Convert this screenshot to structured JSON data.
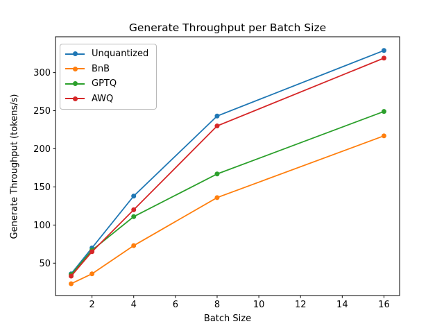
{
  "chart_data": {
    "type": "line",
    "title": "Generate Throughput per Batch Size",
    "xlabel": "Batch Size",
    "ylabel": "Generate Throughput (tokens/s)",
    "x": [
      1,
      2,
      4,
      8,
      16
    ],
    "series": [
      {
        "name": "Unquantized",
        "color": "#1f77b4",
        "values": [
          36,
          70,
          138,
          243,
          329
        ]
      },
      {
        "name": "BnB",
        "color": "#ff7f0e",
        "values": [
          23,
          36,
          73,
          136,
          217
        ]
      },
      {
        "name": "GPTQ",
        "color": "#2ca02c",
        "values": [
          35,
          67,
          111,
          167,
          249
        ]
      },
      {
        "name": "AWQ",
        "color": "#d62728",
        "values": [
          33,
          65,
          120,
          230,
          319
        ]
      }
    ],
    "xticks": [
      2,
      4,
      6,
      8,
      10,
      12,
      14,
      16
    ],
    "yticks": [
      50,
      100,
      150,
      200,
      250,
      300
    ],
    "xlim": [
      0.25,
      16.75
    ],
    "ylim": [
      7.5,
      347
    ],
    "grid": false,
    "legend_position": "upper left",
    "marker": "circle",
    "line_width": 1.8,
    "marker_radius": 3.5,
    "axis_color": "#000000",
    "background_color": "#ffffff"
  }
}
